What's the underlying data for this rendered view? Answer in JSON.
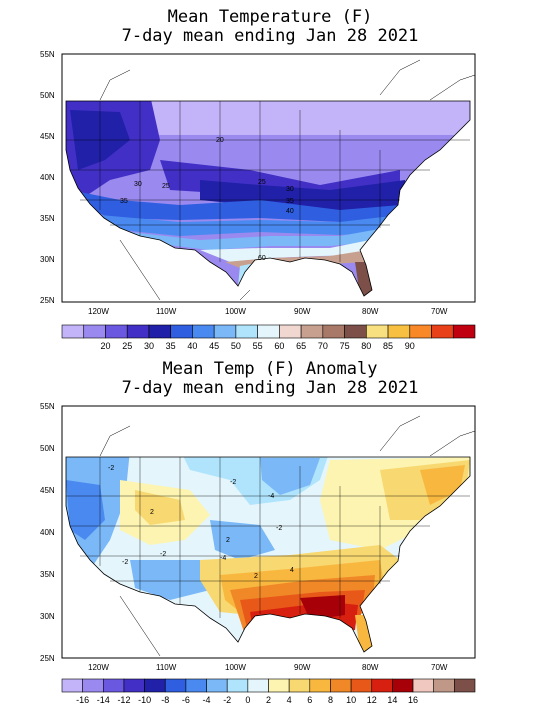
{
  "panel1": {
    "title_line1": "Mean Temperature (F)",
    "title_line2": "7-day mean ending Jan 28 2021",
    "lat_ticks": [
      "55N",
      "50N",
      "45N",
      "40N",
      "35N",
      "30N",
      "25N"
    ],
    "lon_ticks": [
      "120W",
      "110W",
      "100W",
      "90W",
      "80W",
      "70W"
    ],
    "contour_labels": [
      "20",
      "30",
      "25",
      "25",
      "35",
      "30",
      "35",
      "40",
      "60"
    ],
    "colorbar": {
      "colors": [
        "#c3b3f8",
        "#9a8af0",
        "#6b58e0",
        "#4230c6",
        "#2020a8",
        "#2f5fe0",
        "#4a8af0",
        "#7ab8f8",
        "#b0e4fc",
        "#e4f6fc",
        "#f0d8d0",
        "#c8a090",
        "#a87868",
        "#7c5048",
        "#f8e080",
        "#f8c040",
        "#f88828",
        "#e84018",
        "#c00010"
      ],
      "labels": [
        "20",
        "25",
        "30",
        "35",
        "40",
        "45",
        "50",
        "55",
        "60",
        "65",
        "70",
        "75",
        "80",
        "85",
        "90"
      ]
    }
  },
  "panel2": {
    "title_line1": "Mean Temp (F) Anomaly",
    "title_line2": "7-day mean ending Jan 28 2021",
    "lat_ticks": [
      "55N",
      "50N",
      "45N",
      "40N",
      "35N",
      "30N",
      "25N"
    ],
    "lon_ticks": [
      "120W",
      "110W",
      "100W",
      "90W",
      "80W",
      "70W"
    ],
    "contour_labels": [
      "-2",
      "-2",
      "-4",
      "2",
      "2",
      "-2",
      "-4",
      "-2",
      "2",
      "4",
      "-2"
    ],
    "colorbar": {
      "colors": [
        "#c3b3f8",
        "#9a8af0",
        "#6b58e0",
        "#4230c6",
        "#2020a8",
        "#2f5fe0",
        "#4a8af0",
        "#7ab8f8",
        "#b0e4fc",
        "#e4f6fc",
        "#fcf4b0",
        "#f8d870",
        "#f8b840",
        "#f08828",
        "#e85818",
        "#d82010",
        "#a80008",
        "#f0c8c0",
        "#c09888",
        "#7c5048"
      ],
      "labels": [
        "-16",
        "-14",
        "-12",
        "-10",
        "-8",
        "-6",
        "-4",
        "-2",
        "0",
        "2",
        "4",
        "6",
        "8",
        "10",
        "12",
        "14",
        "16"
      ]
    }
  }
}
